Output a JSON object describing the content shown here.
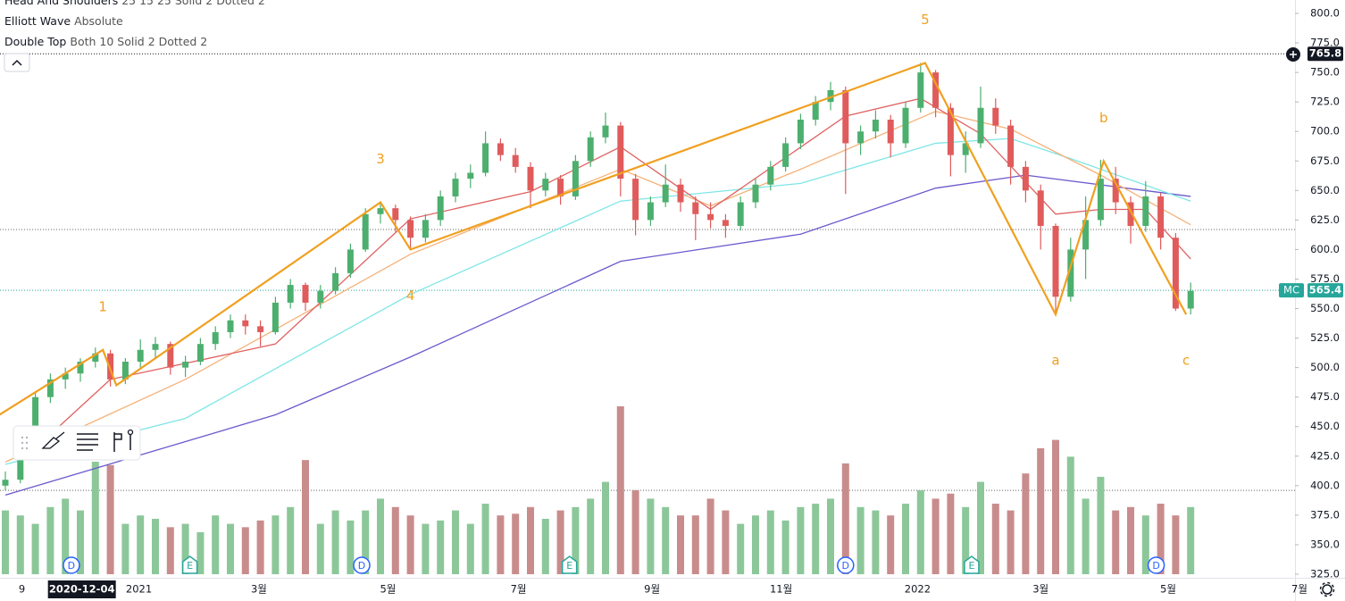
{
  "chart_data": {
    "type": "candlestick",
    "legend": [
      {
        "name": "Head And Shoulders",
        "params": "25 15 25 Solid 2 Dotted 2"
      },
      {
        "name": "Elliott Wave",
        "params": "Absolute"
      },
      {
        "name": "Double Top",
        "params": "Both 10 Solid 2 Dotted 2"
      }
    ],
    "up_color": "#4caf6e",
    "down_color": "#e05b5b",
    "volume_up_color": "#8cc79a",
    "volume_down_color": "#c98c8c",
    "ylim": [
      325,
      800
    ],
    "yticks": [
      {
        "value": 325,
        "label": "325.0"
      },
      {
        "value": 350,
        "label": "350.0"
      },
      {
        "value": 375,
        "label": "375.0"
      },
      {
        "value": 400,
        "label": "400.0"
      },
      {
        "value": 425,
        "label": "425.0"
      },
      {
        "value": 450,
        "label": "450.0"
      },
      {
        "value": 475,
        "label": "475.0"
      },
      {
        "value": 500,
        "label": "500.0"
      },
      {
        "value": 525,
        "label": "525.0"
      },
      {
        "value": 550,
        "label": "550.0"
      },
      {
        "value": 575,
        "label": "575.0"
      },
      {
        "value": 600,
        "label": "600.0"
      },
      {
        "value": 625,
        "label": "625.0"
      },
      {
        "value": 650,
        "label": "650.0"
      },
      {
        "value": 675,
        "label": "675.0"
      },
      {
        "value": 700,
        "label": "700.0"
      },
      {
        "value": 725,
        "label": "725.0"
      },
      {
        "value": 750,
        "label": "750.0"
      },
      {
        "value": 775,
        "label": "775.0"
      },
      {
        "value": 800,
        "label": "800.0"
      }
    ],
    "xticks": [
      {
        "index": 1.1,
        "label": "9"
      },
      {
        "index": 8.9,
        "label": "2021"
      },
      {
        "index": 16.9,
        "label": "3월"
      },
      {
        "index": 25.5,
        "label": "5월"
      },
      {
        "index": 34.2,
        "label": "7월"
      },
      {
        "index": 43.1,
        "label": "9월"
      },
      {
        "index": 51.7,
        "label": "11월"
      },
      {
        "index": 60.8,
        "label": "2022"
      },
      {
        "index": 69,
        "label": "3월"
      },
      {
        "index": 77.5,
        "label": "5월"
      },
      {
        "index": 86.25,
        "label": "7월"
      }
    ],
    "crosshair_label": {
      "index": 5.1,
      "label": "2020-12-04"
    },
    "candles": [
      [
        400,
        412,
        396,
        405
      ],
      [
        405,
        445,
        402,
        440
      ],
      [
        440,
        480,
        435,
        475
      ],
      [
        475,
        495,
        470,
        490
      ],
      [
        490,
        500,
        482,
        495
      ],
      [
        495,
        508,
        488,
        505
      ],
      [
        505,
        517,
        500,
        512
      ],
      [
        512,
        515,
        484,
        490
      ],
      [
        490,
        508,
        486,
        505
      ],
      [
        505,
        524,
        500,
        515
      ],
      [
        515,
        526,
        508,
        520
      ],
      [
        520,
        522,
        494,
        500
      ],
      [
        500,
        510,
        492,
        505
      ],
      [
        505,
        525,
        502,
        520
      ],
      [
        520,
        535,
        515,
        530
      ],
      [
        530,
        545,
        525,
        540
      ],
      [
        540,
        545,
        528,
        535
      ],
      [
        535,
        540,
        518,
        530
      ],
      [
        530,
        560,
        528,
        555
      ],
      [
        555,
        575,
        550,
        570
      ],
      [
        570,
        572,
        548,
        555
      ],
      [
        555,
        570,
        550,
        565
      ],
      [
        565,
        585,
        562,
        580
      ],
      [
        580,
        605,
        576,
        600
      ],
      [
        600,
        635,
        598,
        630
      ],
      [
        630,
        640,
        622,
        635
      ],
      [
        635,
        638,
        615,
        625
      ],
      [
        625,
        628,
        600,
        610
      ],
      [
        610,
        630,
        606,
        625
      ],
      [
        625,
        650,
        620,
        645
      ],
      [
        645,
        665,
        640,
        660
      ],
      [
        660,
        672,
        652,
        665
      ],
      [
        665,
        700,
        662,
        690
      ],
      [
        690,
        694,
        675,
        680
      ],
      [
        680,
        686,
        665,
        670
      ],
      [
        670,
        674,
        635,
        650
      ],
      [
        650,
        665,
        645,
        660
      ],
      [
        660,
        663,
        638,
        645
      ],
      [
        645,
        680,
        642,
        675
      ],
      [
        675,
        700,
        670,
        695
      ],
      [
        695,
        716,
        690,
        705
      ],
      [
        705,
        708,
        645,
        660
      ],
      [
        660,
        664,
        612,
        625
      ],
      [
        625,
        645,
        620,
        640
      ],
      [
        640,
        672,
        636,
        655
      ],
      [
        655,
        660,
        632,
        640
      ],
      [
        640,
        645,
        608,
        630
      ],
      [
        630,
        640,
        618,
        625
      ],
      [
        625,
        630,
        610,
        620
      ],
      [
        620,
        645,
        616,
        640
      ],
      [
        640,
        660,
        635,
        655
      ],
      [
        655,
        675,
        650,
        670
      ],
      [
        670,
        695,
        666,
        690
      ],
      [
        690,
        715,
        685,
        710
      ],
      [
        710,
        730,
        705,
        725
      ],
      [
        725,
        742,
        718,
        735
      ],
      [
        735,
        738,
        647,
        690
      ],
      [
        690,
        705,
        680,
        700
      ],
      [
        700,
        718,
        694,
        710
      ],
      [
        710,
        714,
        678,
        690
      ],
      [
        690,
        725,
        686,
        720
      ],
      [
        720,
        758,
        716,
        750
      ],
      [
        750,
        752,
        712,
        720
      ],
      [
        720,
        724,
        662,
        680
      ],
      [
        680,
        700,
        665,
        690
      ],
      [
        690,
        738,
        686,
        720
      ],
      [
        720,
        728,
        698,
        705
      ],
      [
        705,
        710,
        655,
        670
      ],
      [
        670,
        675,
        640,
        650
      ],
      [
        650,
        655,
        600,
        620
      ],
      [
        620,
        622,
        545,
        560
      ],
      [
        560,
        610,
        556,
        600
      ],
      [
        600,
        645,
        575,
        625
      ],
      [
        625,
        676,
        620,
        660
      ],
      [
        660,
        670,
        630,
        640
      ],
      [
        640,
        645,
        605,
        620
      ],
      [
        620,
        658,
        615,
        645
      ],
      [
        645,
        648,
        600,
        610
      ],
      [
        610,
        614,
        548,
        550
      ],
      [
        550,
        572,
        545,
        565
      ]
    ],
    "volumes": [
      38,
      35,
      30,
      40,
      45,
      38,
      67,
      65,
      30,
      35,
      33,
      28,
      30,
      25,
      35,
      30,
      28,
      32,
      35,
      40,
      68,
      30,
      38,
      32,
      38,
      45,
      40,
      35,
      30,
      32,
      38,
      30,
      42,
      35,
      36,
      40,
      33,
      38,
      40,
      45,
      55,
      100,
      50,
      45,
      40,
      35,
      35,
      45,
      38,
      30,
      35,
      38,
      32,
      40,
      42,
      45,
      66,
      40,
      38,
      35,
      42,
      50,
      45,
      48,
      40,
      55,
      42,
      38,
      60,
      75,
      80,
      70,
      45,
      58,
      38,
      40,
      35,
      42,
      35,
      40
    ],
    "volume_lim": [
      0,
      100
    ],
    "moving_averages": [
      {
        "color": "#6a5acd",
        "index": [
          0,
          18,
          27,
          41,
          53,
          62,
          68,
          79
        ],
        "values": [
          392,
          460,
          509,
          590,
          613,
          652,
          663,
          645
        ]
      },
      {
        "color": "#7fe6e6",
        "index": [
          0,
          12,
          27,
          41,
          53,
          62,
          67,
          71,
          79
        ],
        "values": [
          418,
          457,
          562,
          641,
          656,
          690,
          694,
          677,
          641
        ]
      },
      {
        "color": "#f5b27a",
        "index": [
          0,
          12,
          27,
          41,
          47,
          53,
          62,
          67,
          73,
          79
        ],
        "values": [
          420,
          490,
          596,
          668,
          637,
          668,
          717,
          702,
          663,
          621
        ]
      },
      {
        "color": "#e06060",
        "index": [
          1,
          7,
          18,
          27,
          35,
          41,
          47,
          56,
          61,
          65,
          70,
          73,
          76,
          79
        ],
        "values": [
          420,
          490,
          520,
          626,
          649,
          687,
          634,
          713,
          728,
          698,
          630,
          634,
          634,
          592
        ]
      }
    ],
    "wave": {
      "color": "#f0a020",
      "points": [
        {
          "index": -0.4,
          "value": 460
        },
        {
          "index": 6.5,
          "value": 515,
          "label": "1"
        },
        {
          "index": 7.4,
          "value": 485
        },
        {
          "index": 25,
          "value": 640,
          "label": "3"
        },
        {
          "index": 27,
          "value": 600,
          "label": "4"
        },
        {
          "index": 61.3,
          "value": 758,
          "label": "5"
        },
        {
          "index": 70,
          "value": 545,
          "label": "a"
        },
        {
          "index": 73.2,
          "value": 675,
          "label": "b"
        },
        {
          "index": 78.7,
          "value": 545,
          "label": "c"
        }
      ]
    },
    "price_lines": [
      617,
      396
    ],
    "price_tags": [
      {
        "value": 765.8,
        "color": "#131722"
      },
      {
        "label": "MC",
        "value": 565.4,
        "color": "#26a69a"
      }
    ],
    "events": [
      {
        "label": "D",
        "index": 4.4
      },
      {
        "label": "E",
        "index": 12.3
      },
      {
        "label": "D",
        "index": 23.75
      },
      {
        "label": "E",
        "index": 37.6
      },
      {
        "label": "D",
        "index": 56
      },
      {
        "label": "E",
        "index": 64.4
      },
      {
        "label": "D",
        "index": 76.7
      }
    ]
  }
}
